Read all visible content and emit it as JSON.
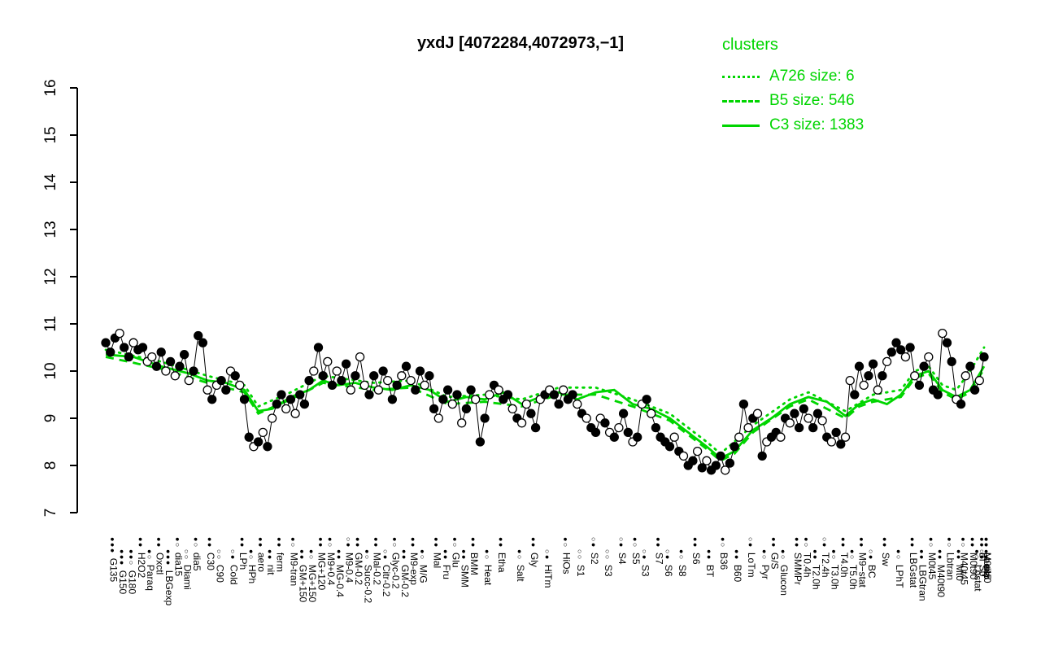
{
  "header": {
    "title": "yxdJ [4072284,4072973,−1]"
  },
  "legend": {
    "title": "clusters",
    "entries": [
      {
        "label": "A726 size: 6",
        "style": "dotted"
      },
      {
        "label": "B5 size: 546",
        "style": "dashed"
      },
      {
        "label": "C3 size: 1383",
        "style": "solid"
      }
    ]
  },
  "colors": {
    "cluster_green": "#00d500",
    "point_filled": "#000000",
    "point_open": "#ffffff",
    "axis": "#000000"
  },
  "chart_data": {
    "type": "line",
    "title": "yxdJ [4072284,4072973,−1]",
    "xlabel": "",
    "ylabel": "",
    "ylim": [
      7,
      16
    ],
    "yticks": [
      7,
      8,
      9,
      10,
      11,
      12,
      13,
      14,
      15,
      16
    ],
    "legend_position": "top-right",
    "grid": false,
    "values": [
      10.6,
      10.4,
      10.7,
      10.8,
      10.5,
      10.3,
      10.6,
      10.45,
      10.5,
      10.2,
      10.3,
      10.1,
      10.4,
      10.0,
      10.2,
      9.9,
      10.1,
      10.35,
      9.8,
      10.0,
      10.75,
      10.6,
      9.6,
      9.4,
      9.7,
      9.8,
      9.6,
      10.0,
      9.9,
      9.7,
      9.4,
      8.6,
      8.4,
      8.5,
      8.7,
      8.4,
      9.0,
      9.3,
      9.5,
      9.2,
      9.4,
      9.1,
      9.5,
      9.3,
      9.8,
      10.0,
      10.5,
      9.9,
      10.2,
      9.7,
      10.0,
      9.8,
      10.15,
      9.6,
      9.9,
      10.3,
      9.7,
      9.5,
      9.9,
      9.6,
      10.0,
      9.8,
      9.4,
      9.7,
      9.9,
      10.1,
      9.8,
      9.6,
      10.0,
      9.7,
      9.9,
      9.2,
      9.0,
      9.4,
      9.6,
      9.3,
      9.5,
      8.9,
      9.2,
      9.6,
      9.4,
      8.5,
      9.0,
      9.5,
      9.7,
      9.6,
      9.4,
      9.5,
      9.2,
      9.0,
      8.9,
      9.3,
      9.1,
      8.8,
      9.4,
      9.5,
      9.6,
      9.5,
      9.3,
      9.6,
      9.4,
      9.5,
      9.3,
      9.1,
      9.0,
      8.8,
      8.7,
      9.0,
      8.9,
      8.7,
      8.6,
      8.8,
      9.1,
      8.7,
      8.5,
      8.6,
      9.3,
      9.4,
      9.1,
      8.8,
      8.6,
      8.5,
      8.4,
      8.6,
      8.3,
      8.2,
      8.0,
      8.1,
      8.3,
      7.95,
      8.1,
      7.9,
      8.0,
      8.2,
      7.9,
      8.05,
      8.4,
      8.6,
      9.3,
      8.8,
      9.0,
      9.1,
      8.2,
      8.5,
      8.6,
      8.7,
      8.6,
      9.0,
      8.9,
      9.1,
      8.8,
      9.2,
      9.0,
      8.8,
      9.1,
      8.95,
      8.6,
      8.5,
      8.7,
      8.45,
      8.6,
      9.8,
      9.5,
      10.1,
      9.7,
      9.9,
      10.15,
      9.6,
      9.9,
      10.2,
      10.4,
      10.6,
      10.45,
      10.3,
      10.5,
      9.9,
      9.7,
      10.1,
      10.3,
      9.6,
      9.5,
      10.8,
      10.6,
      10.2,
      9.4,
      9.3,
      9.9,
      10.1,
      9.6,
      9.8,
      10.3
    ],
    "fill_pattern": "11101101100110101101110101101011010101101011101101011010011010110101101101101011011010110100110101101101011010101101010111101011010111011010101011010111011010110011011010111010110110110101101",
    "clusters": [
      {
        "name": "A726",
        "size": 6,
        "line": "dotted",
        "control_points": [
          [
            0,
            10.45
          ],
          [
            12,
            10.2
          ],
          [
            22,
            9.9
          ],
          [
            30,
            9.7
          ],
          [
            33,
            9.25
          ],
          [
            40,
            9.55
          ],
          [
            47,
            9.9
          ],
          [
            58,
            9.75
          ],
          [
            66,
            9.8
          ],
          [
            74,
            9.45
          ],
          [
            82,
            9.5
          ],
          [
            90,
            9.4
          ],
          [
            98,
            9.65
          ],
          [
            106,
            9.65
          ],
          [
            114,
            9.4
          ],
          [
            122,
            9.1
          ],
          [
            130,
            8.5
          ],
          [
            133,
            8.25
          ],
          [
            140,
            8.85
          ],
          [
            148,
            9.4
          ],
          [
            152,
            9.55
          ],
          [
            160,
            9.15
          ],
          [
            166,
            9.5
          ],
          [
            172,
            9.6
          ],
          [
            175,
            10.0
          ],
          [
            178,
            10.1
          ],
          [
            181,
            9.7
          ],
          [
            184,
            9.6
          ],
          [
            187,
            10.0
          ],
          [
            190,
            10.5
          ]
        ]
      },
      {
        "name": "B5",
        "size": 546,
        "line": "dashed",
        "control_points": [
          [
            0,
            10.3
          ],
          [
            12,
            10.05
          ],
          [
            22,
            9.75
          ],
          [
            30,
            9.55
          ],
          [
            33,
            9.1
          ],
          [
            40,
            9.4
          ],
          [
            47,
            9.75
          ],
          [
            58,
            9.6
          ],
          [
            66,
            9.65
          ],
          [
            74,
            9.3
          ],
          [
            82,
            9.35
          ],
          [
            90,
            9.25
          ],
          [
            98,
            9.5
          ],
          [
            106,
            9.5
          ],
          [
            114,
            9.25
          ],
          [
            122,
            8.95
          ],
          [
            130,
            8.35
          ],
          [
            133,
            8.1
          ],
          [
            136,
            8.25
          ],
          [
            140,
            8.7
          ],
          [
            148,
            9.25
          ],
          [
            152,
            9.4
          ],
          [
            160,
            9.0
          ],
          [
            163,
            9.25
          ],
          [
            166,
            9.35
          ],
          [
            172,
            9.45
          ],
          [
            175,
            9.85
          ],
          [
            178,
            9.95
          ],
          [
            181,
            9.55
          ],
          [
            184,
            9.4
          ],
          [
            187,
            9.55
          ],
          [
            190,
            10.05
          ]
        ]
      },
      {
        "name": "C3",
        "size": 1383,
        "line": "solid",
        "control_points": [
          [
            0,
            10.35
          ],
          [
            6,
            10.3
          ],
          [
            12,
            10.1
          ],
          [
            18,
            9.95
          ],
          [
            22,
            9.8
          ],
          [
            26,
            9.75
          ],
          [
            30,
            9.6
          ],
          [
            33,
            9.15
          ],
          [
            36,
            9.2
          ],
          [
            40,
            9.45
          ],
          [
            44,
            9.6
          ],
          [
            47,
            9.8
          ],
          [
            50,
            9.7
          ],
          [
            54,
            9.75
          ],
          [
            58,
            9.65
          ],
          [
            62,
            9.6
          ],
          [
            66,
            9.7
          ],
          [
            70,
            9.6
          ],
          [
            74,
            9.35
          ],
          [
            78,
            9.45
          ],
          [
            82,
            9.4
          ],
          [
            86,
            9.55
          ],
          [
            90,
            9.3
          ],
          [
            94,
            9.45
          ],
          [
            98,
            9.55
          ],
          [
            102,
            9.4
          ],
          [
            106,
            9.55
          ],
          [
            110,
            9.6
          ],
          [
            114,
            9.3
          ],
          [
            118,
            9.2
          ],
          [
            122,
            9.0
          ],
          [
            126,
            8.7
          ],
          [
            130,
            8.4
          ],
          [
            133,
            8.15
          ],
          [
            136,
            8.3
          ],
          [
            140,
            8.75
          ],
          [
            144,
            9.0
          ],
          [
            148,
            9.3
          ],
          [
            152,
            9.45
          ],
          [
            156,
            9.35
          ],
          [
            160,
            9.05
          ],
          [
            163,
            9.3
          ],
          [
            166,
            9.4
          ],
          [
            169,
            9.3
          ],
          [
            172,
            9.5
          ],
          [
            175,
            9.9
          ],
          [
            178,
            10.0
          ],
          [
            181,
            9.6
          ],
          [
            184,
            9.45
          ],
          [
            187,
            9.6
          ],
          [
            190,
            10.1
          ]
        ]
      }
    ],
    "x_labels": [
      {
        "text": "G135",
        "row": 0,
        "pos": 1,
        "dots": "●●●"
      },
      {
        "text": "G150",
        "row": 1,
        "pos": 3,
        "dots": "●●●"
      },
      {
        "text": "G180",
        "row": 1,
        "pos": 5,
        "dots": "●●○"
      },
      {
        "text": "H2O2",
        "row": 0,
        "pos": 7,
        "dots": "●●"
      },
      {
        "text": "Paraq",
        "row": 1,
        "pos": 9,
        "dots": "●○"
      },
      {
        "text": "Oxctl",
        "row": 0,
        "pos": 11,
        "dots": "●●"
      },
      {
        "text": "LBGexp",
        "row": 1,
        "pos": 13,
        "dots": "●●●"
      },
      {
        "text": "dia15",
        "row": 0,
        "pos": 15,
        "dots": "●○"
      },
      {
        "text": "Diami",
        "row": 1,
        "pos": 17,
        "dots": "○○"
      },
      {
        "text": "dia5",
        "row": 0,
        "pos": 19,
        "dots": "●○"
      },
      {
        "text": "C30",
        "row": 0,
        "pos": 22,
        "dots": "●●"
      },
      {
        "text": "C90",
        "row": 1,
        "pos": 24,
        "dots": "○○"
      },
      {
        "text": "Cold",
        "row": 1,
        "pos": 27,
        "dots": "○●"
      },
      {
        "text": "LPh",
        "row": 0,
        "pos": 29,
        "dots": "●●"
      },
      {
        "text": "HPh",
        "row": 1,
        "pos": 31,
        "dots": "●○"
      },
      {
        "text": "aero",
        "row": 0,
        "pos": 33,
        "dots": "●●"
      },
      {
        "text": "nit",
        "row": 1,
        "pos": 35,
        "dots": "●●"
      },
      {
        "text": "ferm",
        "row": 0,
        "pos": 37,
        "dots": "●●"
      },
      {
        "text": "M9-tran",
        "row": 0,
        "pos": 40,
        "dots": "●○"
      },
      {
        "text": "GM+150",
        "row": 1,
        "pos": 42,
        "dots": "●●"
      },
      {
        "text": "MG+150",
        "row": 1,
        "pos": 44,
        "dots": "●○"
      },
      {
        "text": "MG+120",
        "row": 0,
        "pos": 46,
        "dots": "●●"
      },
      {
        "text": "M9+0.4",
        "row": 0,
        "pos": 48,
        "dots": "●○"
      },
      {
        "text": "MG-0.4",
        "row": 1,
        "pos": 50,
        "dots": "●●"
      },
      {
        "text": "M9-0.4",
        "row": 0,
        "pos": 52,
        "dots": "○●"
      },
      {
        "text": "GM-0.2",
        "row": 0,
        "pos": 54,
        "dots": "●●"
      },
      {
        "text": "Succ-0.2",
        "row": 1,
        "pos": 56,
        "dots": "●○"
      },
      {
        "text": "Mal-0.2",
        "row": 0,
        "pos": 58,
        "dots": "●●"
      },
      {
        "text": "Citr-0.2",
        "row": 1,
        "pos": 60,
        "dots": "○●"
      },
      {
        "text": "Glyc-0.2",
        "row": 0,
        "pos": 62,
        "dots": "●○"
      },
      {
        "text": "GM-0.2",
        "row": 1,
        "pos": 64,
        "dots": "●●"
      },
      {
        "text": "M9-exp",
        "row": 0,
        "pos": 66,
        "dots": "●●"
      },
      {
        "text": "M/G",
        "row": 1,
        "pos": 68,
        "dots": "●○"
      },
      {
        "text": "Mal",
        "row": 0,
        "pos": 71,
        "dots": "●●"
      },
      {
        "text": "Fru",
        "row": 1,
        "pos": 73,
        "dots": "●●"
      },
      {
        "text": "Glu",
        "row": 0,
        "pos": 75,
        "dots": "●○"
      },
      {
        "text": "SMM",
        "row": 1,
        "pos": 77,
        "dots": "●●"
      },
      {
        "text": "BMM",
        "row": 0,
        "pos": 79,
        "dots": "●●"
      },
      {
        "text": "Heat",
        "row": 1,
        "pos": 82,
        "dots": "●○"
      },
      {
        "text": "Etha",
        "row": 0,
        "pos": 85,
        "dots": "●●"
      },
      {
        "text": "Salt",
        "row": 1,
        "pos": 89,
        "dots": "●○"
      },
      {
        "text": "Gly",
        "row": 0,
        "pos": 92,
        "dots": "●●"
      },
      {
        "text": "HiTm",
        "row": 1,
        "pos": 95,
        "dots": "○●"
      },
      {
        "text": "HiOs",
        "row": 0,
        "pos": 99,
        "dots": "●○"
      },
      {
        "text": "S1",
        "row": 1,
        "pos": 102,
        "dots": "○○"
      },
      {
        "text": "S2",
        "row": 0,
        "pos": 105,
        "dots": "○●"
      },
      {
        "text": "S3",
        "row": 1,
        "pos": 108,
        "dots": "○○"
      },
      {
        "text": "S4",
        "row": 0,
        "pos": 111,
        "dots": "○●"
      },
      {
        "text": "S5",
        "row": 0,
        "pos": 114,
        "dots": "●○"
      },
      {
        "text": "S3",
        "row": 1,
        "pos": 116,
        "dots": "○●"
      },
      {
        "text": "S7",
        "row": 0,
        "pos": 119,
        "dots": "●●"
      },
      {
        "text": "S6",
        "row": 1,
        "pos": 121,
        "dots": "○●"
      },
      {
        "text": "S8",
        "row": 1,
        "pos": 124,
        "dots": "●○"
      },
      {
        "text": "S6",
        "row": 0,
        "pos": 127,
        "dots": "●●"
      },
      {
        "text": "BT",
        "row": 1,
        "pos": 130,
        "dots": "●●"
      },
      {
        "text": "B36",
        "row": 0,
        "pos": 133,
        "dots": "●○"
      },
      {
        "text": "B60",
        "row": 1,
        "pos": 136,
        "dots": "●●"
      },
      {
        "text": "LoTm",
        "row": 0,
        "pos": 139,
        "dots": "○●"
      },
      {
        "text": "Pyr",
        "row": 1,
        "pos": 142,
        "dots": "●○"
      },
      {
        "text": "G/S",
        "row": 0,
        "pos": 144,
        "dots": "●●"
      },
      {
        "text": "Glucon",
        "row": 1,
        "pos": 146,
        "dots": "●○"
      },
      {
        "text": "SMMPr",
        "row": 0,
        "pos": 149,
        "dots": "●●"
      },
      {
        "text": "T0.4h",
        "row": 0,
        "pos": 151,
        "dots": "●○"
      },
      {
        "text": "T2.0h",
        "row": 1,
        "pos": 153,
        "dots": "●●"
      },
      {
        "text": "T2.4h",
        "row": 0,
        "pos": 155,
        "dots": "○●"
      },
      {
        "text": "T3.0h",
        "row": 1,
        "pos": 157,
        "dots": "●○"
      },
      {
        "text": "T4.0h",
        "row": 0,
        "pos": 159,
        "dots": "●●"
      },
      {
        "text": "T5.0h",
        "row": 1,
        "pos": 161,
        "dots": "●○"
      },
      {
        "text": "M9−stat",
        "row": 0,
        "pos": 163,
        "dots": "●●"
      },
      {
        "text": "BC",
        "row": 1,
        "pos": 165,
        "dots": "○●"
      },
      {
        "text": "Sw",
        "row": 0,
        "pos": 168,
        "dots": "●●"
      },
      {
        "text": "LPhT",
        "row": 1,
        "pos": 171,
        "dots": "●○"
      },
      {
        "text": "LBGstat",
        "row": 0,
        "pos": 174,
        "dots": "●●"
      },
      {
        "text": "LBGtran",
        "row": 1,
        "pos": 176,
        "dots": "●●"
      },
      {
        "text": "M0t45",
        "row": 0,
        "pos": 178,
        "dots": "●○"
      },
      {
        "text": "M40t90",
        "row": 1,
        "pos": 180,
        "dots": "●●"
      },
      {
        "text": "Lbtran",
        "row": 0,
        "pos": 182,
        "dots": "●○"
      },
      {
        "text": "Mt0",
        "row": 1,
        "pos": 184,
        "dots": "●●"
      },
      {
        "text": "M40t45",
        "row": 0,
        "pos": 185,
        "dots": "●○"
      },
      {
        "text": "M0t90",
        "row": 0,
        "pos": 187,
        "dots": "●●"
      },
      {
        "text": "Lbstat",
        "row": 1,
        "pos": 188,
        "dots": "●○"
      },
      {
        "text": "Bl",
        "row": 0,
        "pos": 189,
        "dots": "●●"
      },
      {
        "text": "S0",
        "row": 1,
        "pos": 189,
        "dots": "○●"
      },
      {
        "text": "M0t45",
        "row": 0,
        "pos": 190,
        "dots": "●○"
      },
      {
        "text": "dia0",
        "row": 1,
        "pos": 190,
        "dots": "●●"
      },
      {
        "text": "Lbexp",
        "row": 0,
        "pos": 190,
        "dots": "●●"
      }
    ]
  }
}
